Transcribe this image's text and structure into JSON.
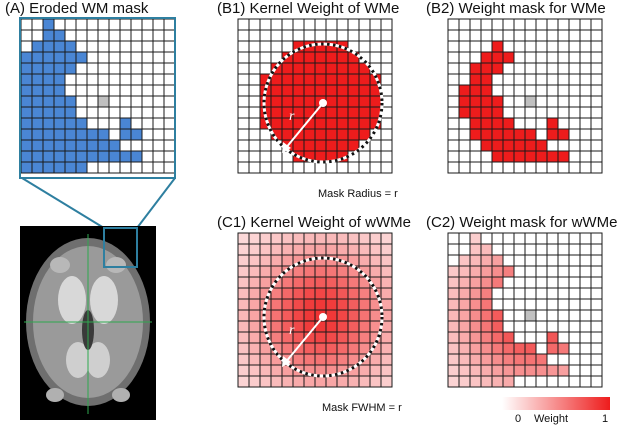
{
  "panels": {
    "a": {
      "title": "(A) Eroded WM mask"
    },
    "b1": {
      "title": "(B1) Kernel Weight of WMe",
      "radius_symbol": "r",
      "caption": "Mask Radius = r"
    },
    "b2": {
      "title": "(B2) Weight mask for WMe"
    },
    "c1": {
      "title": "(C1) Kernel Weight of wWMe",
      "radius_symbol": "r",
      "caption": "Mask FWHM = r"
    },
    "c2": {
      "title": "(C2) Weight mask for wWMe"
    }
  },
  "colorbar": {
    "min_label": "0",
    "mid_label": "Weight",
    "max_label": "1",
    "low_color": "#ffffff",
    "high_color": "#ee1c1c"
  },
  "colors": {
    "wm_blue": "#4a86d4",
    "red": "#ee1c1c",
    "center_gray": "#c0c0c0",
    "frame_teal": "#2e7fa0",
    "crosshair_green": "#2fa84f"
  },
  "mask_grid": {
    "size": 14,
    "rows": [
      "00100000000000",
      "00110000000000",
      "01111000000000",
      "11111100000000",
      "11111000000000",
      "11110000000000",
      "11110000000000",
      "11111000000000",
      "11111000000000",
      "11111100010000",
      "11111111011000",
      "11111111100000",
      "11111111111000",
      "11111100000000"
    ],
    "center_row": 7,
    "center_col": 7
  }
}
